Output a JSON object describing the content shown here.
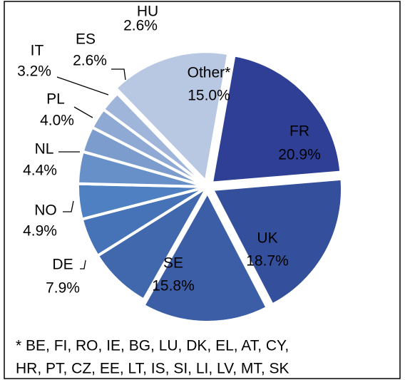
{
  "chart_data": {
    "type": "pie",
    "categories": [
      "FR",
      "UK",
      "SE",
      "DE",
      "NO",
      "NL",
      "PL",
      "IT",
      "ES",
      "HU",
      "Other*"
    ],
    "values": [
      20.9,
      18.7,
      15.8,
      7.9,
      4.9,
      4.4,
      4.0,
      3.2,
      2.6,
      2.6,
      15.0
    ],
    "value_labels": [
      "20.9%",
      "18.7%",
      "15.8%",
      "7.9%",
      "4.9%",
      "4.4%",
      "4.0%",
      "3.2%",
      "2.6%",
      "2.6%",
      "15.0%"
    ],
    "colors": [
      "#2f3f95",
      "#34509c",
      "#3c5ea6",
      "#4168ad",
      "#4673b8",
      "#4f80c2",
      "#6890c8",
      "#7b9ccd",
      "#8ea9d4",
      "#9fb5da",
      "#b8c8e3"
    ],
    "footnote": [
      "* BE, FI, RO, IE, BG, LU, DK, EL, AT, CY,",
      "HR, PT, CZ, EE, LT, IS, SI, LI, LV, MT, SK"
    ]
  }
}
